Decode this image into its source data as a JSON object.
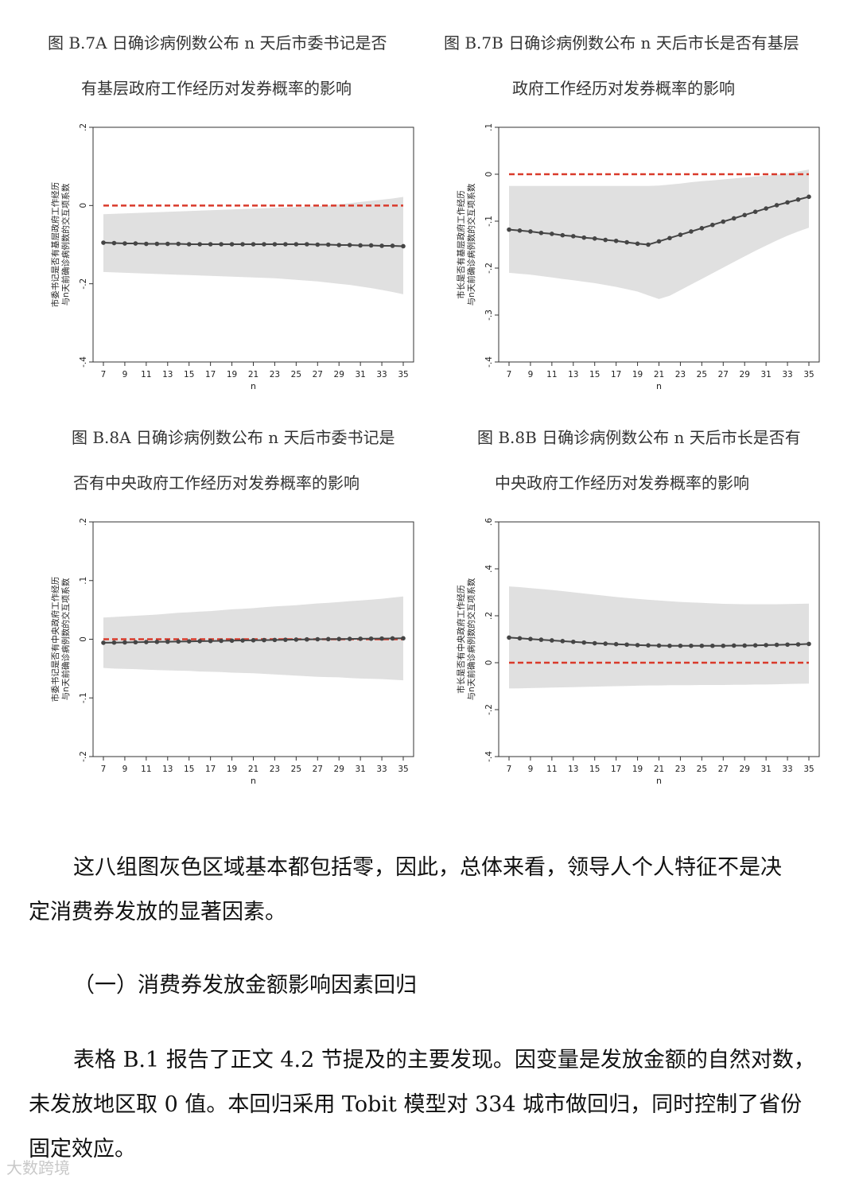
{
  "figures": [
    {
      "id": "B7A",
      "caption_line1": "图 B.7A  日确诊病例数公布 n 天后市委书记是否",
      "caption_line2": "有基层政府工作经历对发券概率的影响"
    },
    {
      "id": "B7B",
      "caption_line1": "图 B.7B  日确诊病例数公布 n 天后市长是否有基层",
      "caption_line2": "政府工作经历对发券概率的影响"
    },
    {
      "id": "B8A",
      "caption_line1": "图 B.8A  日确诊病例数公布 n 天后市委书记是",
      "caption_line2": "否有中央政府工作经历对发券概率的影响"
    },
    {
      "id": "B8B",
      "caption_line1": "图 B.8B  日确诊病例数公布 n 天后市长是否有",
      "caption_line2": "中央政府工作经历对发券概率的影响"
    }
  ],
  "chart_data": [
    {
      "type": "line",
      "ylabel_line1": "市委书记是否有基层政府工作经历",
      "ylabel_line2": "与n天前确诊病例数的交互项系数",
      "xlabel": "n",
      "x": [
        7,
        8,
        9,
        10,
        11,
        12,
        13,
        14,
        15,
        16,
        17,
        18,
        19,
        20,
        21,
        22,
        23,
        24,
        25,
        26,
        27,
        28,
        29,
        30,
        31,
        32,
        33,
        34,
        35
      ],
      "xticks": [
        7,
        9,
        11,
        13,
        15,
        17,
        19,
        21,
        23,
        25,
        27,
        29,
        31,
        33,
        35
      ],
      "ylim": [
        -0.4,
        0.2
      ],
      "yticks": [
        0.2,
        0,
        -0.2,
        -0.4
      ],
      "ytick_labels": [
        ".2",
        "0",
        "-.2",
        "-.4"
      ],
      "series": [
        {
          "values": [
            -0.095,
            -0.096,
            -0.097,
            -0.097,
            -0.098,
            -0.098,
            -0.098,
            -0.098,
            -0.099,
            -0.099,
            -0.099,
            -0.099,
            -0.099,
            -0.099,
            -0.099,
            -0.099,
            -0.099,
            -0.099,
            -0.099,
            -0.099,
            -0.1,
            -0.1,
            -0.101,
            -0.101,
            -0.102,
            -0.102,
            -0.103,
            -0.103,
            -0.104
          ]
        }
      ],
      "ci_lower": [
        -0.17,
        -0.171,
        -0.172,
        -0.173,
        -0.174,
        -0.175,
        -0.176,
        -0.177,
        -0.178,
        -0.179,
        -0.18,
        -0.181,
        -0.182,
        -0.183,
        -0.184,
        -0.185,
        -0.186,
        -0.188,
        -0.19,
        -0.192,
        -0.194,
        -0.197,
        -0.2,
        -0.203,
        -0.207,
        -0.211,
        -0.216,
        -0.221,
        -0.227
      ],
      "ci_upper": [
        -0.022,
        -0.021,
        -0.02,
        -0.019,
        -0.018,
        -0.017,
        -0.016,
        -0.015,
        -0.014,
        -0.013,
        -0.012,
        -0.011,
        -0.01,
        -0.009,
        -0.008,
        -0.007,
        -0.006,
        -0.005,
        -0.004,
        -0.003,
        -0.002,
        0.0,
        0.003,
        0.006,
        0.009,
        0.012,
        0.015,
        0.018,
        0.022
      ],
      "reference_line": 0,
      "grid": false
    },
    {
      "type": "line",
      "ylabel_line1": "市长是否有基层政府工作经历",
      "ylabel_line2": "与n天前确诊病例数的交互项系数",
      "xlabel": "n",
      "x": [
        7,
        8,
        9,
        10,
        11,
        12,
        13,
        14,
        15,
        16,
        17,
        18,
        19,
        20,
        21,
        22,
        23,
        24,
        25,
        26,
        27,
        28,
        29,
        30,
        31,
        32,
        33,
        34,
        35
      ],
      "xticks": [
        7,
        9,
        11,
        13,
        15,
        17,
        19,
        21,
        23,
        25,
        27,
        29,
        31,
        33,
        35
      ],
      "ylim": [
        -0.4,
        0.1
      ],
      "yticks": [
        0.1,
        0,
        -0.1,
        -0.2,
        -0.3,
        -0.4
      ],
      "ytick_labels": [
        ".1",
        "0",
        "-.1",
        "-.2",
        "-.3",
        "-.4"
      ],
      "series": [
        {
          "values": [
            -0.118,
            -0.12,
            -0.122,
            -0.125,
            -0.127,
            -0.13,
            -0.132,
            -0.135,
            -0.137,
            -0.14,
            -0.142,
            -0.145,
            -0.148,
            -0.15,
            -0.143,
            -0.136,
            -0.129,
            -0.122,
            -0.115,
            -0.108,
            -0.101,
            -0.094,
            -0.087,
            -0.08,
            -0.073,
            -0.066,
            -0.06,
            -0.054,
            -0.048
          ]
        }
      ],
      "ci_lower": [
        -0.21,
        -0.212,
        -0.214,
        -0.217,
        -0.22,
        -0.223,
        -0.226,
        -0.229,
        -0.232,
        -0.236,
        -0.24,
        -0.245,
        -0.25,
        -0.258,
        -0.266,
        -0.259,
        -0.247,
        -0.235,
        -0.223,
        -0.211,
        -0.199,
        -0.187,
        -0.175,
        -0.163,
        -0.152,
        -0.141,
        -0.131,
        -0.122,
        -0.114
      ],
      "ci_upper": [
        -0.025,
        -0.025,
        -0.025,
        -0.025,
        -0.025,
        -0.025,
        -0.025,
        -0.025,
        -0.025,
        -0.025,
        -0.025,
        -0.025,
        -0.025,
        -0.025,
        -0.024,
        -0.022,
        -0.02,
        -0.017,
        -0.015,
        -0.013,
        -0.011,
        -0.009,
        -0.007,
        -0.005,
        -0.003,
        -0.001,
        0.002,
        0.006,
        0.01
      ],
      "reference_line": 0,
      "grid": false
    },
    {
      "type": "line",
      "ylabel_line1": "市委书记是否有中央政府工作经历",
      "ylabel_line2": "与n天前确诊病例数的交互项系数",
      "xlabel": "n",
      "x": [
        7,
        8,
        9,
        10,
        11,
        12,
        13,
        14,
        15,
        16,
        17,
        18,
        19,
        20,
        21,
        22,
        23,
        24,
        25,
        26,
        27,
        28,
        29,
        30,
        31,
        32,
        33,
        34,
        35
      ],
      "xticks": [
        7,
        9,
        11,
        13,
        15,
        17,
        19,
        21,
        23,
        25,
        27,
        29,
        31,
        33,
        35
      ],
      "ylim": [
        -0.2,
        0.2
      ],
      "yticks": [
        0.2,
        0.1,
        0,
        -0.1,
        -0.2
      ],
      "ytick_labels": [
        ".2",
        ".1",
        "0",
        "-.1",
        "-.2"
      ],
      "series": [
        {
          "values": [
            -0.006,
            -0.0057,
            -0.0054,
            -0.0051,
            -0.0048,
            -0.0045,
            -0.0042,
            -0.0039,
            -0.0036,
            -0.0033,
            -0.003,
            -0.0027,
            -0.0024,
            -0.0021,
            -0.0018,
            -0.0015,
            -0.0012,
            -0.0009,
            -0.0006,
            -0.0003,
            0.0,
            0.0002,
            0.0004,
            0.0006,
            0.0008,
            0.001,
            0.0012,
            0.0014,
            0.0016
          ]
        }
      ],
      "ci_lower": [
        -0.049,
        -0.05,
        -0.0505,
        -0.051,
        -0.052,
        -0.0525,
        -0.053,
        -0.0535,
        -0.054,
        -0.055,
        -0.0555,
        -0.056,
        -0.057,
        -0.0575,
        -0.058,
        -0.059,
        -0.06,
        -0.061,
        -0.062,
        -0.063,
        -0.064,
        -0.0645,
        -0.065,
        -0.066,
        -0.067,
        -0.0675,
        -0.068,
        -0.069,
        -0.07
      ],
      "ci_upper": [
        0.037,
        0.038,
        0.039,
        0.04,
        0.041,
        0.042,
        0.0435,
        0.045,
        0.046,
        0.047,
        0.048,
        0.0495,
        0.051,
        0.052,
        0.053,
        0.0545,
        0.056,
        0.057,
        0.058,
        0.0595,
        0.061,
        0.062,
        0.0635,
        0.065,
        0.066,
        0.0675,
        0.069,
        0.071,
        0.073
      ],
      "reference_line": 0,
      "grid": false
    },
    {
      "type": "line",
      "ylabel_line1": "市长是否有中央政府工作经历",
      "ylabel_line2": "与n天前确诊病例数的交互项系数",
      "xlabel": "n",
      "x": [
        7,
        8,
        9,
        10,
        11,
        12,
        13,
        14,
        15,
        16,
        17,
        18,
        19,
        20,
        21,
        22,
        23,
        24,
        25,
        26,
        27,
        28,
        29,
        30,
        31,
        32,
        33,
        34,
        35
      ],
      "xticks": [
        7,
        9,
        11,
        13,
        15,
        17,
        19,
        21,
        23,
        25,
        27,
        29,
        31,
        33,
        35
      ],
      "ylim": [
        -0.4,
        0.6
      ],
      "yticks": [
        0.6,
        0.4,
        0.2,
        0,
        -0.2,
        -0.4
      ],
      "ytick_labels": [
        ".6",
        ".4",
        ".2",
        "0",
        "-.2",
        "-.4"
      ],
      "series": [
        {
          "values": [
            0.107,
            0.104,
            0.101,
            0.098,
            0.095,
            0.092,
            0.089,
            0.086,
            0.083,
            0.081,
            0.079,
            0.077,
            0.075,
            0.074,
            0.073,
            0.072,
            0.072,
            0.072,
            0.072,
            0.072,
            0.072,
            0.073,
            0.073,
            0.074,
            0.075,
            0.076,
            0.077,
            0.078,
            0.08
          ]
        }
      ],
      "ci_lower": [
        -0.11,
        -0.109,
        -0.108,
        -0.107,
        -0.106,
        -0.105,
        -0.104,
        -0.103,
        -0.102,
        -0.101,
        -0.1,
        -0.099,
        -0.098,
        -0.097,
        -0.097,
        -0.096,
        -0.096,
        -0.096,
        -0.095,
        -0.095,
        -0.095,
        -0.094,
        -0.094,
        -0.093,
        -0.093,
        -0.092,
        -0.091,
        -0.09,
        -0.089
      ],
      "ci_upper": [
        0.325,
        0.322,
        0.318,
        0.314,
        0.31,
        0.305,
        0.3,
        0.295,
        0.29,
        0.285,
        0.28,
        0.276,
        0.272,
        0.268,
        0.265,
        0.262,
        0.259,
        0.257,
        0.255,
        0.253,
        0.251,
        0.25,
        0.249,
        0.249,
        0.249,
        0.249,
        0.25,
        0.251,
        0.252
      ],
      "reference_line": 0,
      "grid": false
    }
  ],
  "body": {
    "para1_line1": "这八组图灰色区域基本都包括零，因此，总体来看，领导人个人特征不是决",
    "para1_line2": "定消费券发放的显著因素。",
    "section_heading": "（一）消费券发放金额影响因素回归",
    "para2_line1": "表格 B.1 报告了正文 4.2 节提及的主要发现。因变量是发放金额的自然对数，",
    "para2_line2": "未发放地区取 0 值。本回归采用 Tobit 模型对 334 城市做回归，同时控制了省份",
    "para2_line3": "固定效应。"
  },
  "watermark": "大数跨境",
  "colors": {
    "ci_band": "#e0e0e0",
    "series_line": "#454545",
    "reference_line": "#d93a2b",
    "axis": "#333333"
  }
}
